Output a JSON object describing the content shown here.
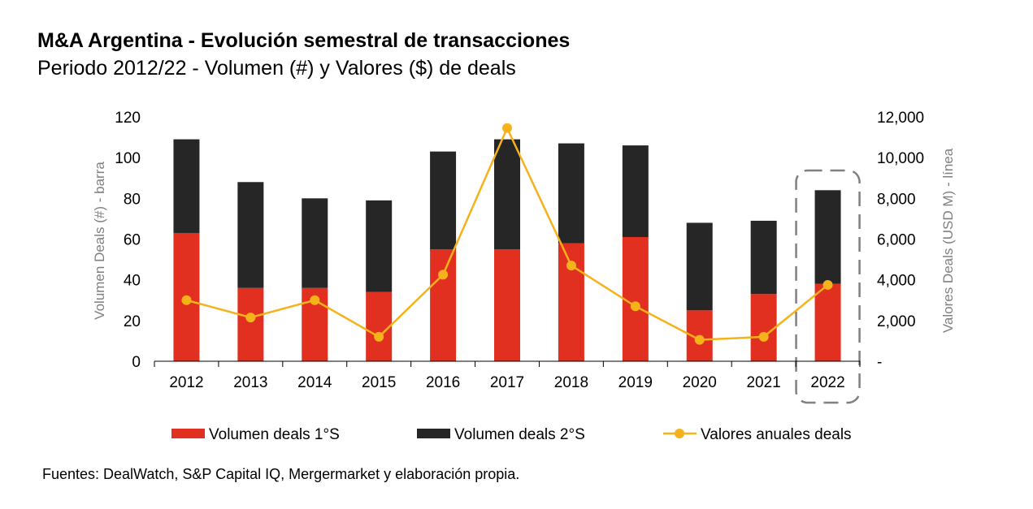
{
  "title": "M&A Argentina - Evolución semestral de transacciones",
  "subtitle": "Periodo 2012/22 - Volumen (#) y Valores ($) de deals",
  "source": "Fuentes: DealWatch, S&P Capital IQ, Mergermarket y elaboración propia.",
  "colors": {
    "s1": "#E1301F",
    "s2": "#262626",
    "line": "#F5B21A",
    "axis_label": "#7F7F7F",
    "highlight_box": "#808080"
  },
  "chart_data": {
    "type": "bar",
    "categories": [
      "2012",
      "2013",
      "2014",
      "2015",
      "2016",
      "2017",
      "2018",
      "2019",
      "2020",
      "2021",
      "2022"
    ],
    "series": [
      {
        "name": "Volumen deals 1°S",
        "type": "bar",
        "axis": "left",
        "stacked": true,
        "values": [
          63,
          36,
          36,
          34,
          55,
          55,
          58,
          61,
          25,
          33,
          38
        ]
      },
      {
        "name": "Volumen deals 2°S",
        "type": "bar",
        "axis": "left",
        "stacked": true,
        "values": [
          46,
          52,
          44,
          45,
          48,
          54,
          49,
          45,
          43,
          36,
          46
        ]
      },
      {
        "name": "Valores anuales deals",
        "type": "line",
        "axis": "right",
        "values": [
          3000,
          2150,
          3000,
          1200,
          4250,
          11450,
          4700,
          2700,
          1050,
          1200,
          3750
        ]
      }
    ],
    "ylabel": "Volumen Deals (#) - barra",
    "y2label": "Valores Deals (USD M) - línea",
    "ylim": [
      0,
      120
    ],
    "y2lim": [
      0,
      12000
    ],
    "yticks": [
      "0",
      "20",
      "40",
      "60",
      "80",
      "100",
      "120"
    ],
    "y2ticks": [
      "-",
      "2,000",
      "4,000",
      "6,000",
      "8,000",
      "10,000",
      "12,000"
    ],
    "highlight_category": "2022",
    "legend": "bottom",
    "grid": false
  }
}
